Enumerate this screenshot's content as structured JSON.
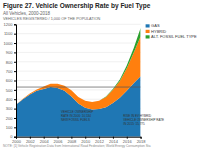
{
  "chart_data": {
    "type": "area",
    "stacked": true,
    "title": "Figure 27. Vehicle Ownership Rate by Fuel Type",
    "subtitle": "All Vehicles, 2000-2018",
    "ylabel": "VEHICLES REGISTERED / 1,000 OF THE POPULATION",
    "source": "NOTE: [1] Vehicle Registration Data from International Road Federation; World Energy Consumption Sta",
    "x": [
      2000,
      2001,
      2002,
      2003,
      2004,
      2005,
      2006,
      2007,
      2008,
      2009,
      2010,
      2011,
      2012,
      2013,
      2014,
      2015,
      2016,
      2017,
      2018
    ],
    "series": [
      {
        "name": "GAS",
        "values": [
          340,
          400,
          450,
          490,
          510,
          530,
          520,
          490,
          430,
          355,
          310,
          290,
          295,
          315,
          360,
          415,
          490,
          570,
          645
        ]
      },
      {
        "name": "HYBRID",
        "values": [
          0,
          5,
          10,
          15,
          25,
          35,
          45,
          55,
          65,
          70,
          75,
          80,
          90,
          110,
          140,
          180,
          240,
          325,
          425
        ]
      },
      {
        "name": "ALT. FOSSIL FUEL TYPE",
        "values": [
          0,
          0,
          0,
          0,
          0,
          0,
          0,
          0,
          0,
          0,
          0,
          0,
          0,
          5,
          10,
          17,
          30,
          50,
          90
        ]
      }
    ],
    "xlim": [
      2000,
      2018
    ],
    "xticks": [
      2000,
      2002,
      2004,
      2006,
      2008,
      2010,
      2012,
      2014,
      2016,
      2018
    ],
    "ylim": [
      0,
      1200
    ],
    "yticks": [
      0,
      100,
      200,
      300,
      400,
      500,
      600,
      700,
      800,
      900,
      1000,
      1100,
      1200
    ],
    "grid": true,
    "legend": "upper right",
    "reference_line": {
      "y": 530
    },
    "annotations": [
      {
        "text": "VEHICLE OWNERSHIP\nRATE IN 2006: 10,534\nNEW FOSSIL FUELS",
        "x": 2006.5,
        "y": 220
      },
      {
        "text": "RISE IN EV HYBRID\nVEHICLE OWNERSHIP RATE\nIN 2015: 15,775",
        "x": 2015.5,
        "y": 180
      }
    ]
  }
}
